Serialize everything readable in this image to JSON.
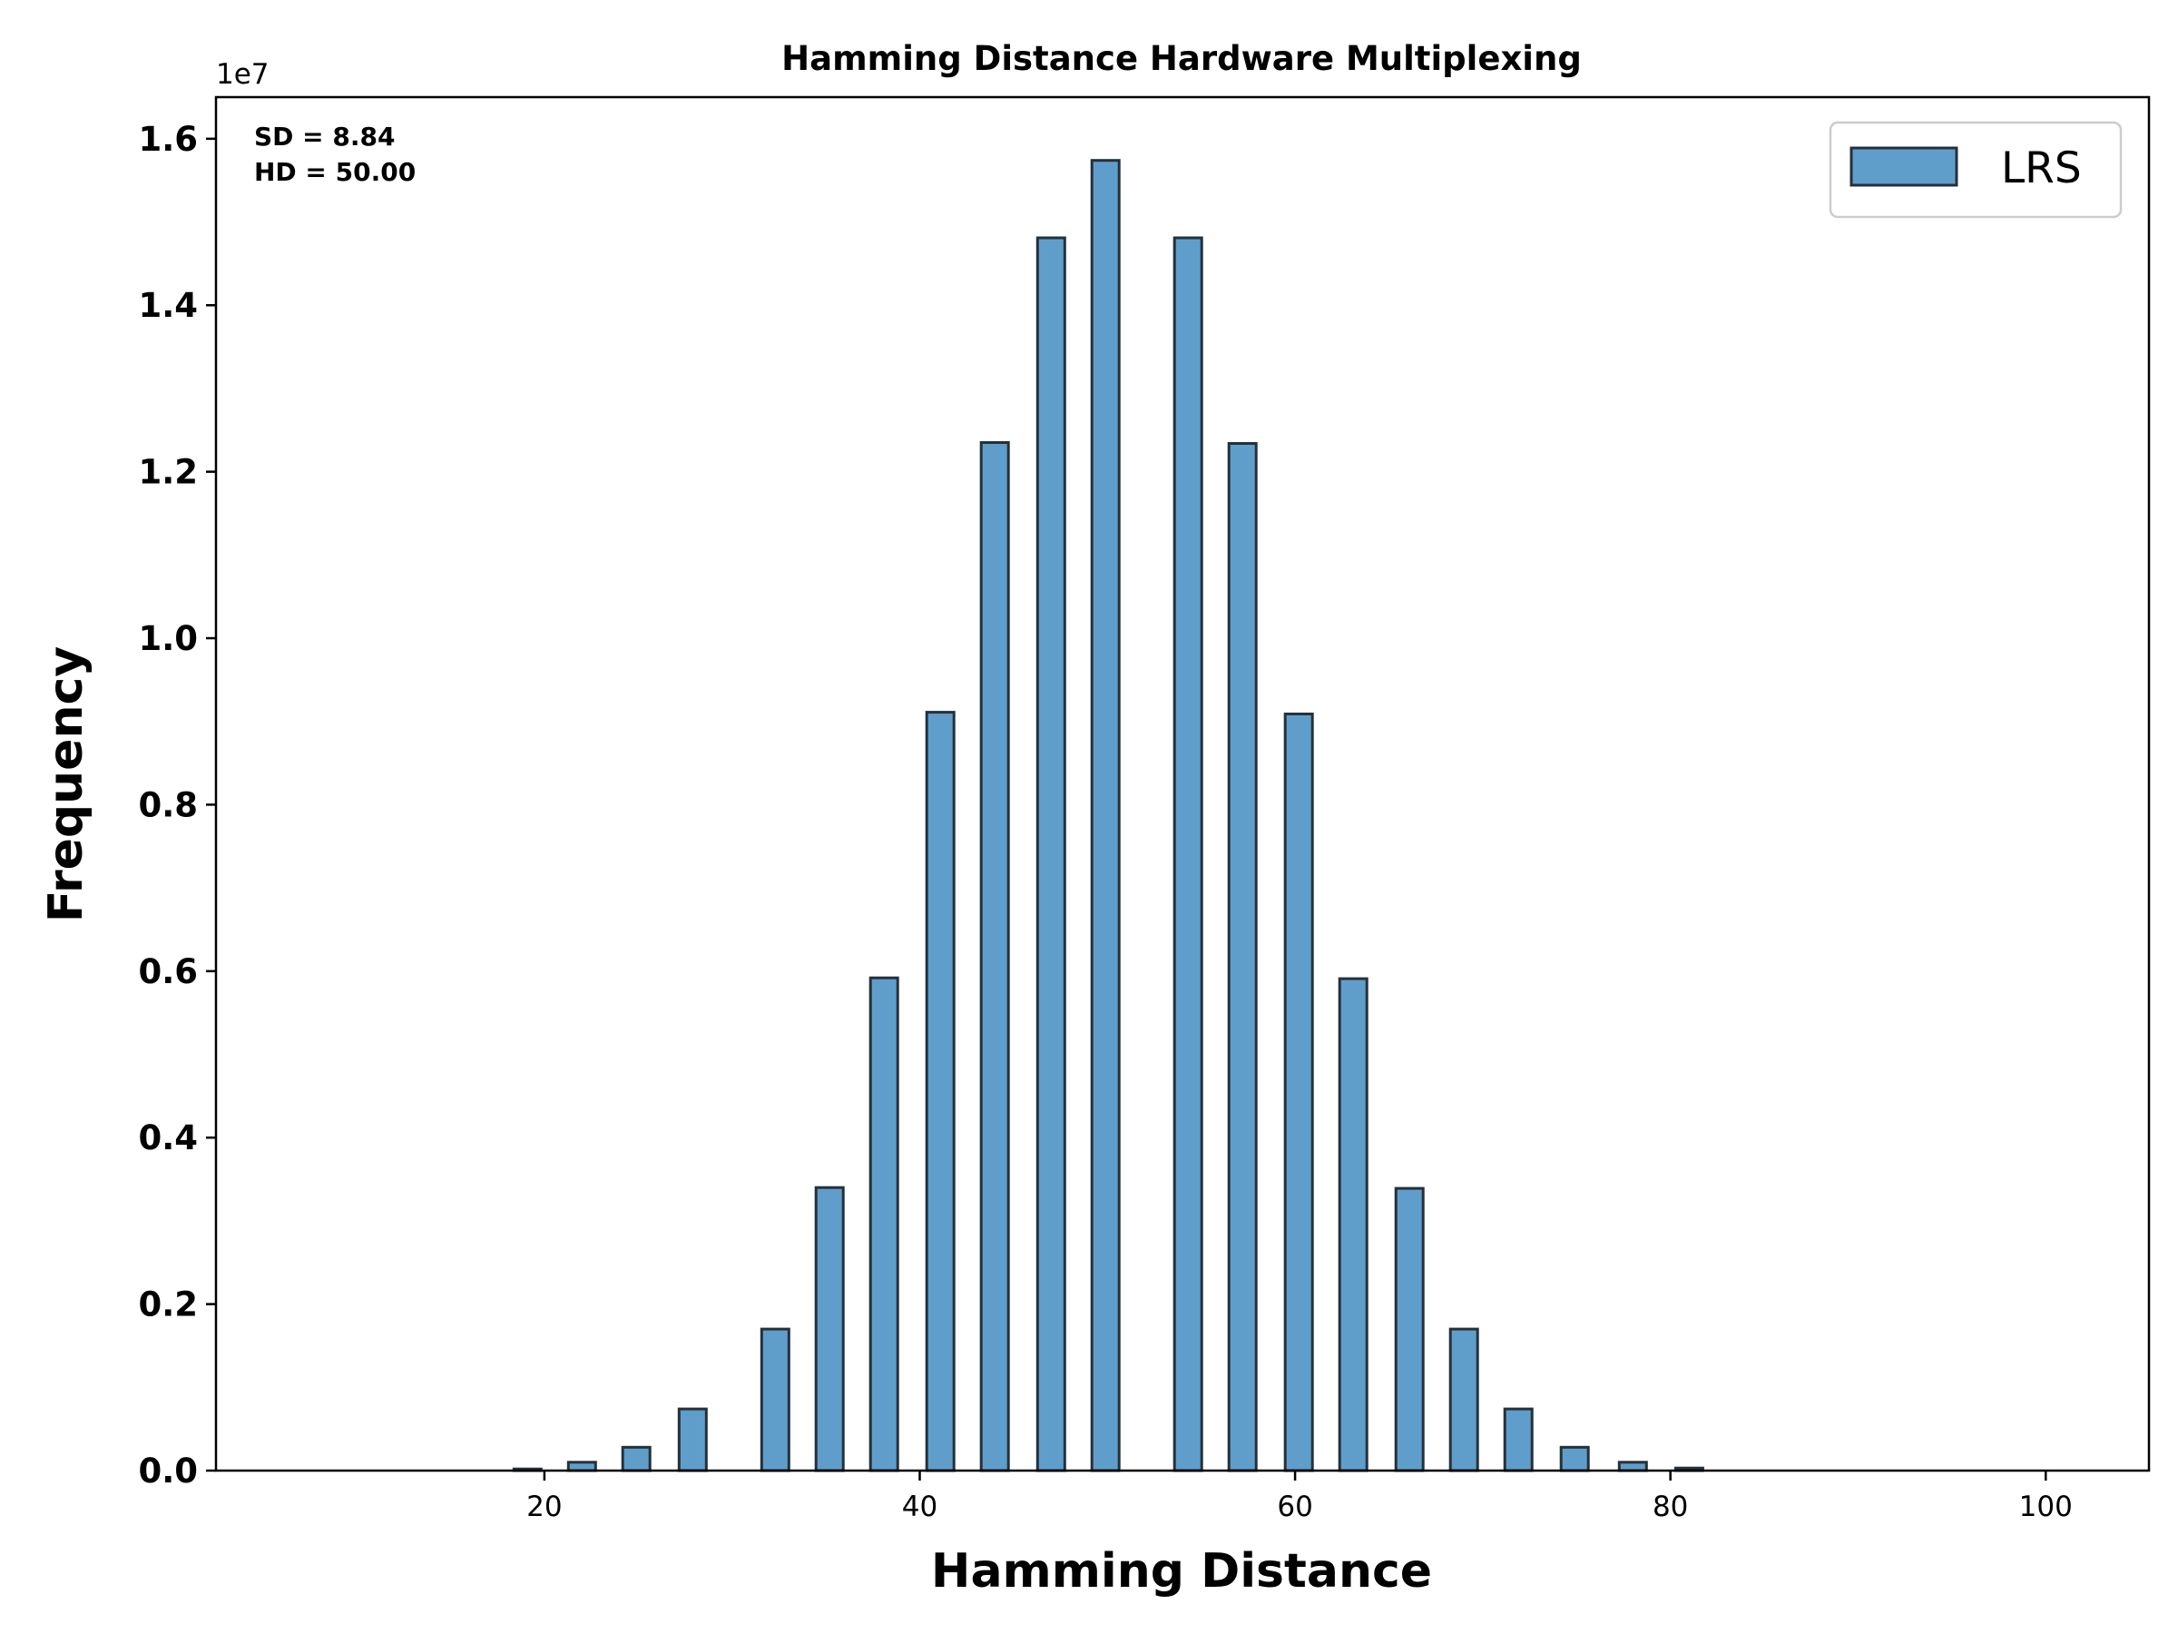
{
  "chart_data": {
    "type": "bar",
    "title": "Hamming Distance Hardware Multiplexing",
    "xlabel": "Hamming Distance",
    "ylabel": "Frequency",
    "y_offset_label": "1e7",
    "xlim": [
      2.5,
      105.5
    ],
    "ylim": [
      0,
      1.65
    ],
    "xticks": [
      20,
      40,
      60,
      80,
      100
    ],
    "yticks": [
      0.0,
      0.2,
      0.4,
      0.6,
      0.8,
      1.0,
      1.2,
      1.4,
      1.6
    ],
    "ytick_labels": [
      "0.0",
      "0.2",
      "0.4",
      "0.6",
      "0.8",
      "1.0",
      "1.2",
      "1.4",
      "1.6"
    ],
    "bar_width": 1.45,
    "bar_color": "#5f9ecb",
    "edge_color": "#24313a",
    "legend": {
      "label": "LRS",
      "position": "top-right"
    },
    "annotations": [
      "SD  = 8.84",
      "HD =  50.00"
    ],
    "series": [
      {
        "name": "LRS",
        "x": [
          7.3,
          10.2,
          13.2,
          16.1,
          19.1,
          22.0,
          24.9,
          27.9,
          32.3,
          35.2,
          38.1,
          41.1,
          44.0,
          47.0,
          49.9,
          54.3,
          57.2,
          60.2,
          63.1,
          66.1,
          69.0,
          71.9,
          74.9,
          78.0,
          81.0
        ],
        "values": [
          0.0,
          0.0,
          0.0,
          0.0,
          0.002,
          0.01,
          0.028,
          0.074,
          0.17,
          0.34,
          0.592,
          0.911,
          1.235,
          1.481,
          1.574,
          1.481,
          1.234,
          0.909,
          0.591,
          0.339,
          0.17,
          0.074,
          0.028,
          0.01,
          0.003
        ]
      }
    ]
  }
}
